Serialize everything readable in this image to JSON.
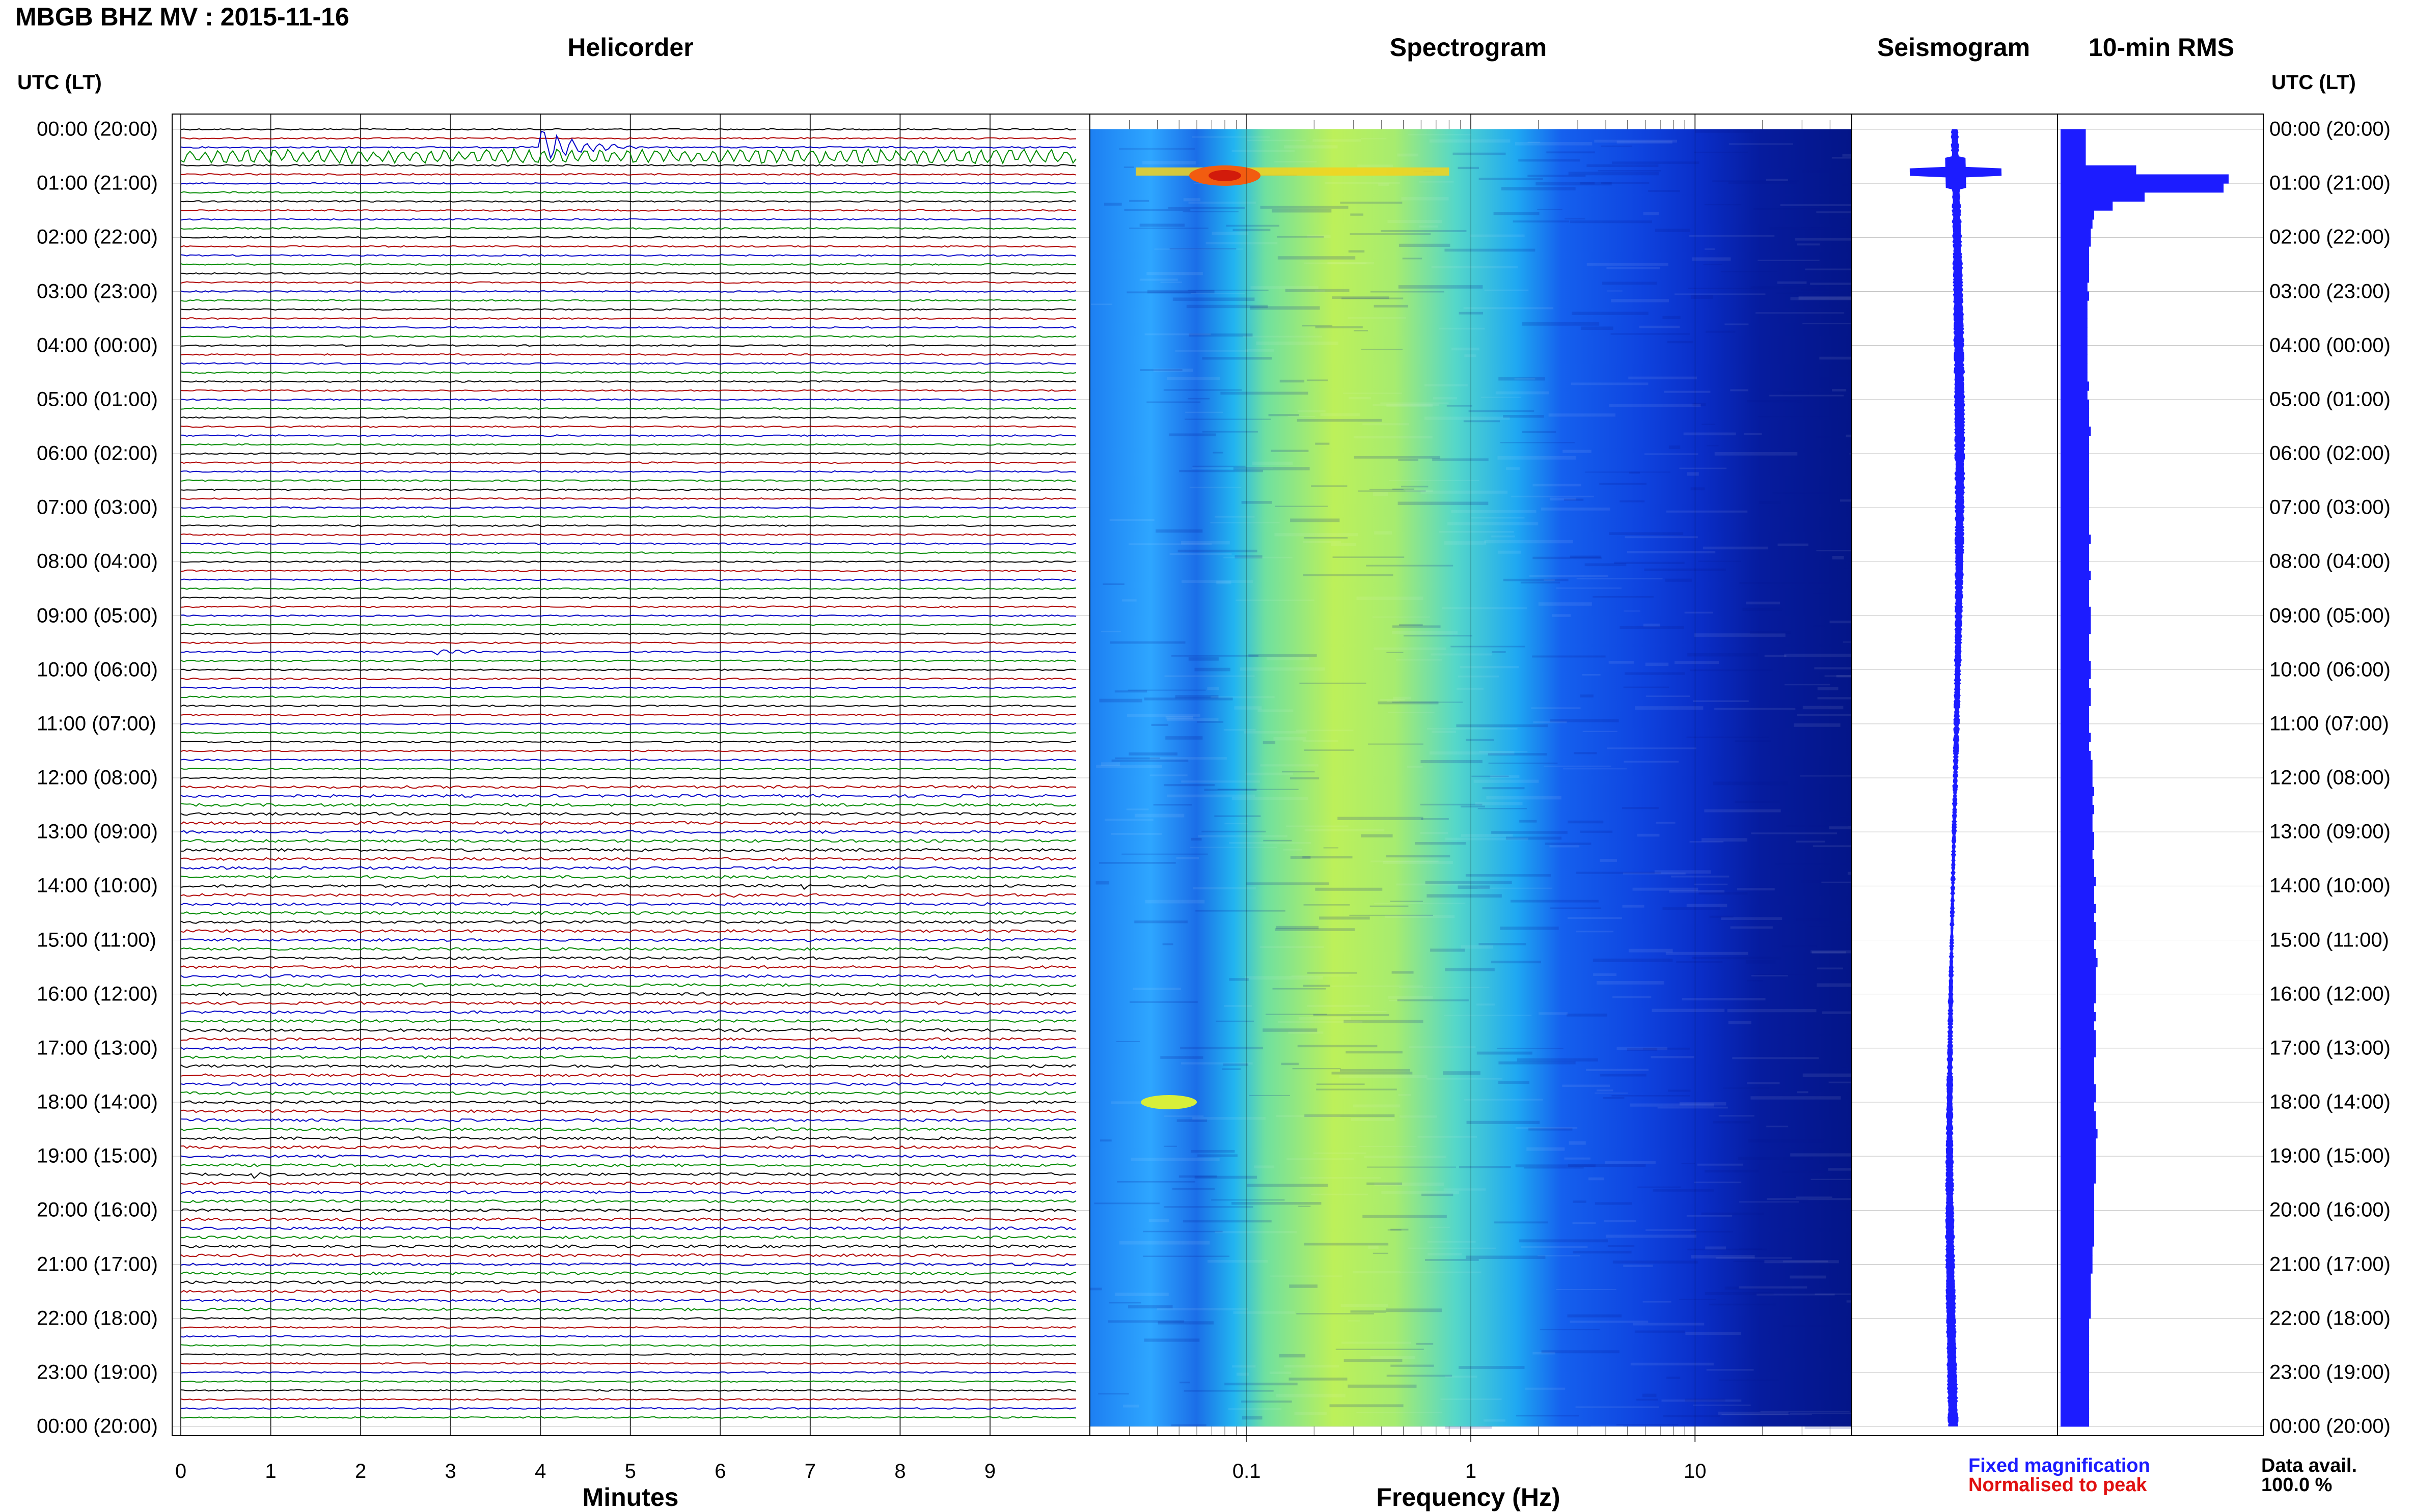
{
  "header": {
    "title": "MBGB BHZ MV : 2015-11-16"
  },
  "panels": {
    "helicorder_title": "Helicorder",
    "spectrogram_title": "Spectrogram",
    "seismogram_title": "Seismogram",
    "rms_title": "10-min RMS"
  },
  "axes": {
    "utc_header_left": "UTC (LT)",
    "utc_header_right": "UTC (LT)",
    "helicorder_xlabel": "Minutes",
    "spectrogram_xlabel": "Frequency (Hz)",
    "time_labels": [
      "00:00 (20:00)",
      "01:00 (21:00)",
      "02:00 (22:00)",
      "03:00 (23:00)",
      "04:00 (00:00)",
      "05:00 (01:00)",
      "06:00 (02:00)",
      "07:00 (03:00)",
      "08:00 (04:00)",
      "09:00 (05:00)",
      "10:00 (06:00)",
      "11:00 (07:00)",
      "12:00 (08:00)",
      "13:00 (09:00)",
      "14:00 (10:00)",
      "15:00 (11:00)",
      "16:00 (12:00)",
      "17:00 (13:00)",
      "18:00 (14:00)",
      "19:00 (15:00)",
      "20:00 (16:00)",
      "21:00 (17:00)",
      "22:00 (18:00)",
      "23:00 (19:00)",
      "00:00 (20:00)"
    ],
    "minute_ticks": [
      "0",
      "1",
      "2",
      "3",
      "4",
      "5",
      "6",
      "7",
      "8",
      "9"
    ],
    "frequency_ticks": [
      "0.1",
      "1",
      "10"
    ]
  },
  "legend": {
    "fixed": "Fixed magnification",
    "normalised": "Normalised to peak",
    "fixed_color": "#1c1cff",
    "normalised_color": "#e01010"
  },
  "data_availability": {
    "label": "Data avail.",
    "value": "100.0 %"
  },
  "colors": {
    "trace_cycle": [
      "#000000",
      "#b00000",
      "#0000c8",
      "#008a00"
    ],
    "seismogram": "#1c1cff",
    "rms": "#1c1cff"
  },
  "chart_data": [
    {
      "type": "line",
      "name": "Helicorder",
      "x_unit": "minutes",
      "xlim": [
        0,
        10
      ],
      "rows_per_hour": 6,
      "hours": 24,
      "events": [
        {
          "row": 2,
          "minute_start": 4.0,
          "minute_end": 5.2,
          "amplitude": "large"
        },
        {
          "row": 3,
          "minute_start": 0.0,
          "minute_end": 10.0,
          "amplitude": "moderate"
        },
        {
          "row": 58,
          "minute_start": 2.8,
          "minute_end": 3.6,
          "amplitude": "small"
        },
        {
          "row": 84,
          "minute_start": 6.9,
          "minute_end": 7.2,
          "amplitude": "small"
        },
        {
          "row": 85,
          "minute_start": 6.1,
          "minute_end": 6.6,
          "amplitude": "small"
        },
        {
          "row": 116,
          "minute_start": 0.8,
          "minute_end": 1.2,
          "amplitude": "small"
        }
      ]
    },
    {
      "type": "heatmap",
      "name": "Spectrogram",
      "x_scale": "log",
      "xlim_hz": [
        0.02,
        50
      ],
      "colormap": "jet",
      "dominant_band_hz": [
        0.15,
        0.8
      ],
      "hot_spots": [
        {
          "hour": 0.8,
          "freq_hz": 0.08,
          "level": "high"
        },
        {
          "hour": 18.0,
          "freq_hz": 0.045,
          "level": "medium"
        }
      ]
    },
    {
      "type": "line",
      "name": "Seismogram",
      "samples_per_hour": 6,
      "spike_hour": 0.8
    },
    {
      "type": "bar",
      "name": "10-min RMS",
      "orientation": "horizontal",
      "values": [
        0.15,
        0.15,
        0.15,
        0.15,
        0.45,
        1.0,
        0.97,
        0.5,
        0.31,
        0.2,
        0.19,
        0.18,
        0.18,
        0.17,
        0.17,
        0.17,
        0.17,
        0.16,
        0.17,
        0.16,
        0.16,
        0.16,
        0.16,
        0.16,
        0.16,
        0.16,
        0.16,
        0.16,
        0.17,
        0.16,
        0.17,
        0.17,
        0.17,
        0.18,
        0.17,
        0.17,
        0.17,
        0.17,
        0.17,
        0.17,
        0.17,
        0.17,
        0.17,
        0.17,
        0.17,
        0.18,
        0.17,
        0.17,
        0.17,
        0.18,
        0.17,
        0.17,
        0.17,
        0.18,
        0.18,
        0.18,
        0.17,
        0.17,
        0.17,
        0.18,
        0.18,
        0.17,
        0.18,
        0.18,
        0.17,
        0.17,
        0.17,
        0.18,
        0.17,
        0.18,
        0.19,
        0.19,
        0.19,
        0.2,
        0.19,
        0.2,
        0.19,
        0.19,
        0.2,
        0.2,
        0.19,
        0.2,
        0.2,
        0.21,
        0.2,
        0.2,
        0.21,
        0.2,
        0.21,
        0.21,
        0.2,
        0.21,
        0.22,
        0.21,
        0.21,
        0.21,
        0.21,
        0.2,
        0.21,
        0.2,
        0.21,
        0.21,
        0.21,
        0.2,
        0.2,
        0.2,
        0.21,
        0.21,
        0.2,
        0.21,
        0.21,
        0.22,
        0.21,
        0.21,
        0.21,
        0.21,
        0.21,
        0.2,
        0.2,
        0.2,
        0.2,
        0.2,
        0.2,
        0.2,
        0.19,
        0.19,
        0.19,
        0.18,
        0.18,
        0.18,
        0.18,
        0.18,
        0.17,
        0.17,
        0.17,
        0.17,
        0.17,
        0.17,
        0.17,
        0.17,
        0.17,
        0.17,
        0.17,
        0.17
      ]
    }
  ]
}
